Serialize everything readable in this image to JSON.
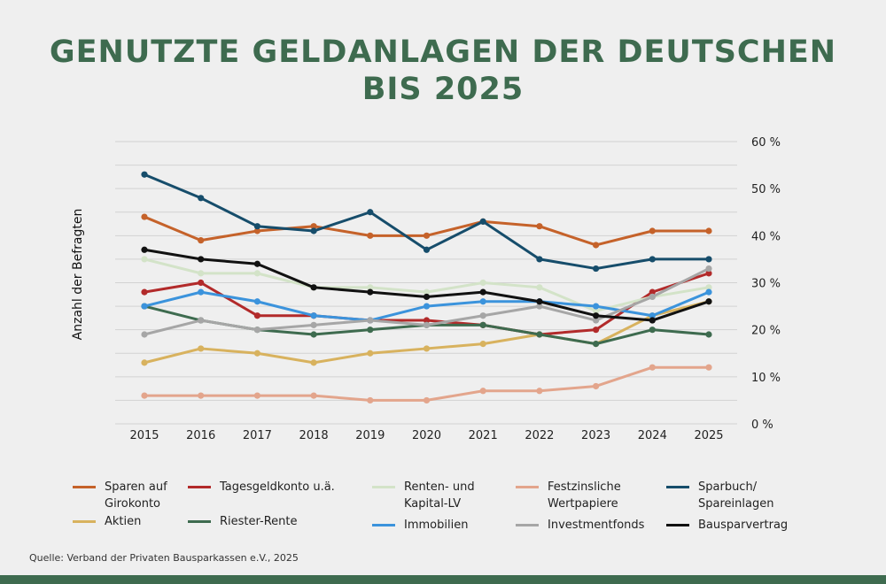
{
  "title": "GENUTZTE GELDANLAGEN DER DEUTSCHEN\nBIS 2025",
  "source": "Quelle: Verband der Privaten Bausparkassen e.V., 2025",
  "chart_data": {
    "type": "line",
    "title": "GENUTZTE GELDANLAGEN DER DEUTSCHEN BIS 2025",
    "xlabel": "",
    "ylabel": "Anzahl der Befragten",
    "ylim": [
      0,
      60
    ],
    "yticks": [
      "0 %",
      "10 %",
      "20 %",
      "30 %",
      "40 %",
      "50 %",
      "60 %"
    ],
    "y_axis_position": "right",
    "grid": true,
    "legend_position": "bottom",
    "x": [
      "2015",
      "2016",
      "2017",
      "2018",
      "2019",
      "2020",
      "2021",
      "2022",
      "2023",
      "2024",
      "2025"
    ],
    "series": [
      {
        "name": "Sparen auf\nGirokonto",
        "color": "#c5622a",
        "values": [
          44,
          39,
          41,
          42,
          40,
          40,
          43,
          42,
          38,
          41,
          41
        ]
      },
      {
        "name": "Tagesgeldkonto u.ä.",
        "color": "#b22a2a",
        "values": [
          28,
          30,
          23,
          23,
          22,
          22,
          21,
          19,
          20,
          28,
          32
        ]
      },
      {
        "name": "Renten- und\nKapital-LV",
        "color": "#d3e3c8",
        "values": [
          35,
          32,
          32,
          29,
          29,
          28,
          30,
          29,
          24,
          27,
          29
        ]
      },
      {
        "name": "Festzinsliche\nWertpapiere",
        "color": "#e3a58c",
        "values": [
          6,
          6,
          6,
          6,
          5,
          5,
          7,
          7,
          8,
          12,
          12
        ]
      },
      {
        "name": "Sparbuch/\nSpareinlagen",
        "color": "#164d6b",
        "values": [
          53,
          48,
          42,
          41,
          45,
          37,
          43,
          35,
          33,
          35,
          35
        ]
      },
      {
        "name": "Aktien",
        "color": "#d8b25e",
        "values": [
          13,
          16,
          15,
          13,
          15,
          16,
          17,
          19,
          17,
          23,
          26
        ]
      },
      {
        "name": "Riester-Rente",
        "color": "#3e6b4f",
        "values": [
          25,
          22,
          20,
          19,
          20,
          21,
          21,
          19,
          17,
          20,
          19
        ]
      },
      {
        "name": "Immobilien",
        "color": "#3b93dc",
        "values": [
          25,
          28,
          26,
          23,
          22,
          25,
          26,
          26,
          25,
          23,
          28
        ]
      },
      {
        "name": "Investmentfonds",
        "color": "#a6a6a6",
        "values": [
          19,
          22,
          20,
          21,
          22,
          21,
          23,
          25,
          22,
          27,
          33
        ]
      },
      {
        "name": "Bausparvertrag",
        "color": "#111111",
        "values": [
          37,
          35,
          34,
          29,
          28,
          27,
          28,
          26,
          23,
          22,
          26
        ]
      }
    ]
  }
}
